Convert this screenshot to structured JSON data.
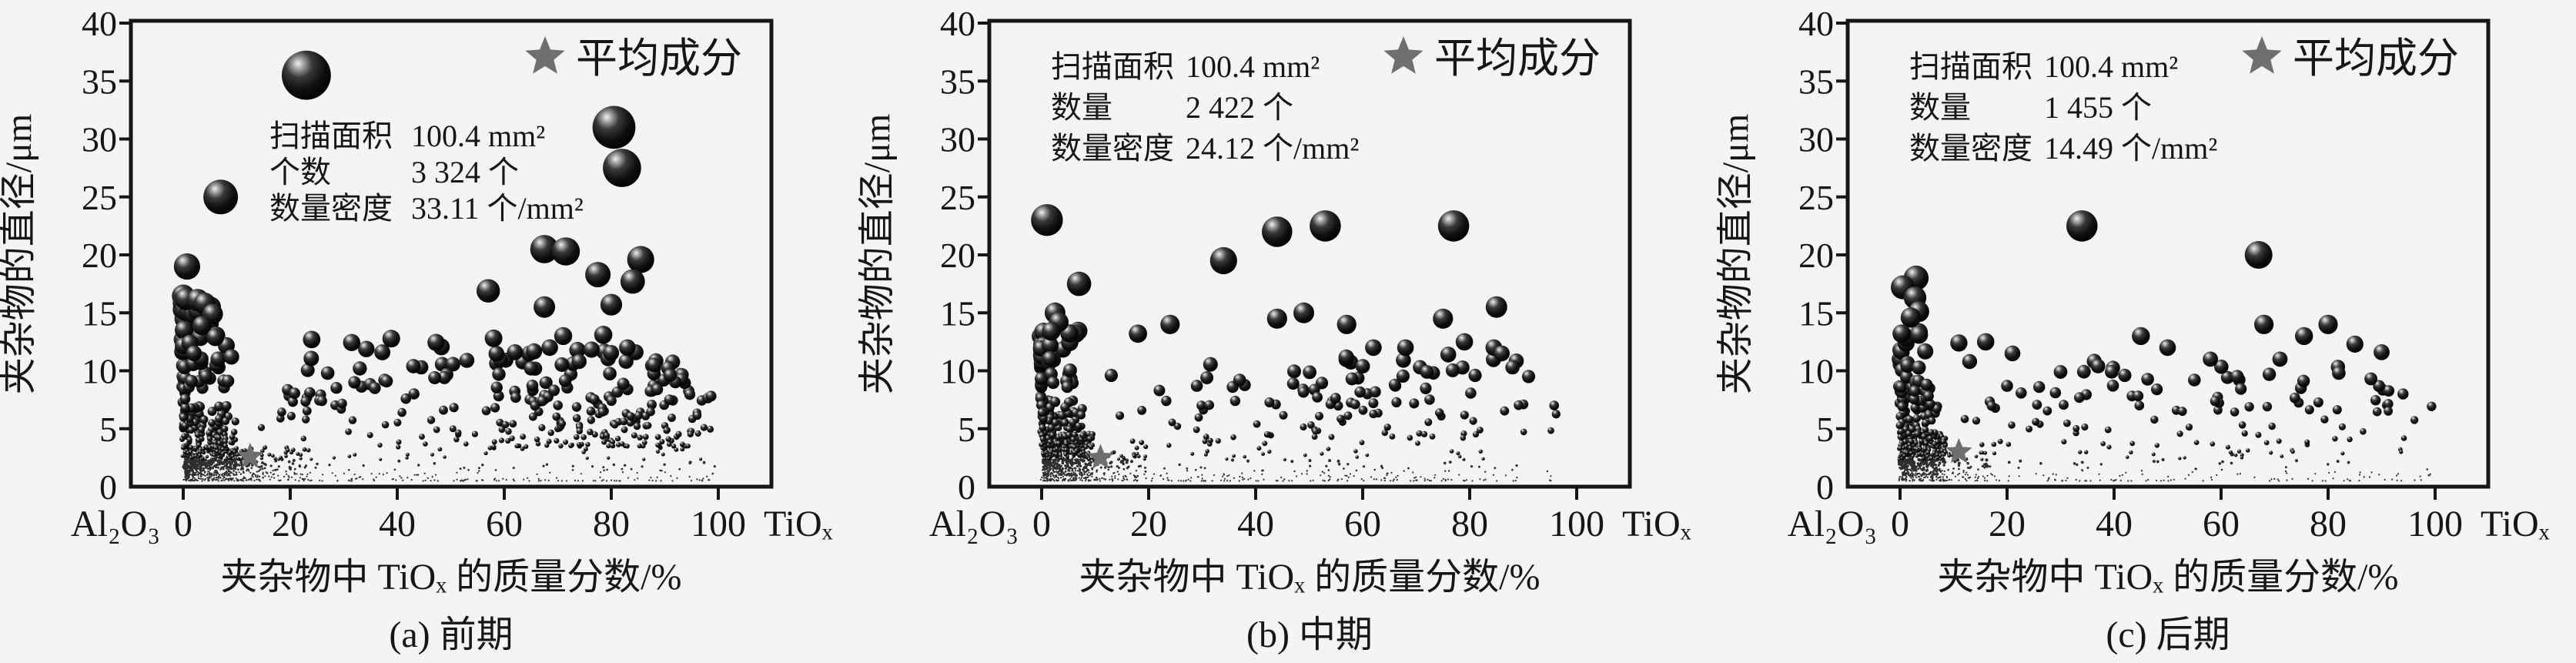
{
  "figure": {
    "background": "#f5f4f2",
    "ink_color": "#161616",
    "point_color": "#0d0d0d",
    "star_color": "#6f6f6f"
  },
  "axes_common": {
    "ylabel": "夹杂物的直径/μm",
    "xlabel": "夹杂物中 TiOₓ 的质量分数/%",
    "x_left_end_label": "Al₂O₃",
    "x_right_end_label": "TiOₓ",
    "yticks": [
      0,
      5,
      10,
      15,
      20,
      25,
      30,
      35,
      40
    ],
    "xticks": [
      0,
      20,
      40,
      60,
      80,
      100
    ],
    "ylim": [
      0,
      40
    ],
    "xlim": [
      0,
      100
    ],
    "grid": false,
    "legend": {
      "marker": "star",
      "label": "平均成分",
      "position": "top-right"
    }
  },
  "chart_data": [
    {
      "type": "scatter",
      "caption": "(a) 前期",
      "marker_rule": "bubble radius proportional to inclusion diameter (y value)",
      "annotation": [
        {
          "label": "扫描面积",
          "value": "100.4 mm²"
        },
        {
          "label": "个数",
          "value": "3 324 个"
        },
        {
          "label": "数量密度",
          "value": "33.11 个/mm²"
        }
      ],
      "annotation_layout": {
        "label_x": 350,
        "value_x": 534,
        "baselines": [
          190,
          237,
          284
        ]
      },
      "average_composition": {
        "x": 12.5,
        "y": 2.6
      },
      "feature_points": [
        [
          23,
          35.5
        ],
        [
          80.5,
          31
        ],
        [
          82,
          27.5
        ],
        [
          7,
          25
        ],
        [
          0.7,
          19
        ],
        [
          67.5,
          20.5
        ],
        [
          71.5,
          20.3
        ],
        [
          85.5,
          19.6
        ],
        [
          77.5,
          18.3
        ],
        [
          84,
          17.7
        ],
        [
          57,
          16.9
        ],
        [
          0.5,
          16.2
        ],
        [
          2.7,
          16.1
        ],
        [
          67.5,
          15.5
        ],
        [
          80,
          15.7
        ],
        [
          4,
          15.8
        ],
        [
          5.5,
          14.9
        ],
        [
          3.5,
          13.9
        ],
        [
          58,
          12.8
        ],
        [
          71,
          13
        ],
        [
          78.5,
          13.1
        ],
        [
          62,
          11.6
        ],
        [
          68.5,
          12
        ],
        [
          83,
          12
        ],
        [
          6,
          12.9
        ],
        [
          9,
          11.2
        ],
        [
          2,
          11.5
        ],
        [
          24,
          12.7
        ],
        [
          33,
          10.2
        ],
        [
          43,
          10.4
        ],
        [
          47,
          9.4
        ],
        [
          27,
          9.8
        ],
        [
          38,
          9.1
        ],
        [
          88,
          10.5
        ],
        [
          91,
          9.6
        ],
        [
          74,
          10.8
        ],
        [
          65,
          10.2
        ],
        [
          59,
          9.7
        ],
        [
          53,
          10.9
        ],
        [
          32,
          9.0
        ]
      ],
      "cloud": {
        "seed": 101,
        "clusters": [
          {
            "n": 480,
            "x": [
              0.3,
              13
            ],
            "xpow": 1.6,
            "y": [
              0.5,
              3.4
            ],
            "ypow": 1.3
          },
          {
            "n": 300,
            "x": [
              0.5,
              10
            ],
            "xpow": 1.5,
            "y": [
              1,
              7
            ],
            "ypow": 2.2
          },
          {
            "n": 55,
            "x": [
              -0.2,
              0.4
            ],
            "xpow": 1.0,
            "y": [
              0.5,
              16.5
            ],
            "ypow": 1.0
          },
          {
            "n": 170,
            "x": [
              8,
              24
            ],
            "xpow": 1.4,
            "y": [
              0.5,
              3.4
            ],
            "ypow": 1.6
          },
          {
            "n": 300,
            "x": [
              14,
              100
            ],
            "xpow": 1.0,
            "y": [
              0.5,
              8.5
            ],
            "ypow": 3.0
          },
          {
            "n": 150,
            "x": [
              58,
              95
            ],
            "xpow": 1.0,
            "y": [
              3.5,
              12
            ],
            "ypow": 1.9
          },
          {
            "n": 26,
            "x": [
              1,
              9
            ],
            "xpow": 1.3,
            "y": [
              8.5,
              15.5
            ],
            "ypow": 1.4
          },
          {
            "n": 18,
            "x": [
              18,
              52
            ],
            "xpow": 1.0,
            "y": [
              8.5,
              13
            ],
            "ypow": 1.5
          }
        ]
      }
    },
    {
      "type": "scatter",
      "caption": "(b) 中期",
      "marker_rule": "bubble radius proportional to inclusion diameter (y value)",
      "annotation": [
        {
          "label": "扫描面积",
          "value": "100.4 mm²"
        },
        {
          "label": "数量",
          "value": "2 422 个"
        },
        {
          "label": "数量密度",
          "value": "24.12 个/mm²"
        }
      ],
      "annotation_layout": {
        "label_x": 250,
        "value_x": 425,
        "baselines": [
          100,
          153,
          206
        ]
      },
      "average_composition": {
        "x": 11,
        "y": 2.5
      },
      "feature_points": [
        [
          1,
          23
        ],
        [
          44,
          22
        ],
        [
          53,
          22.5
        ],
        [
          77,
          22.5
        ],
        [
          34,
          19.5
        ],
        [
          7,
          17.5
        ],
        [
          85,
          15.5
        ],
        [
          49,
          15
        ],
        [
          44,
          14.5
        ],
        [
          75,
          14.5
        ],
        [
          24,
          14
        ],
        [
          57,
          14
        ],
        [
          2.5,
          15
        ],
        [
          3.2,
          14.2
        ],
        [
          1.8,
          13.4
        ],
        [
          79,
          12.5
        ],
        [
          62,
          12
        ],
        [
          68,
          12
        ],
        [
          84.5,
          12
        ],
        [
          86,
          11.5
        ],
        [
          76,
          11.4
        ],
        [
          18,
          13.2
        ],
        [
          29,
          8.7
        ],
        [
          37,
          9.2
        ],
        [
          47,
          8.9
        ],
        [
          58,
          9.3
        ],
        [
          66,
          8.8
        ],
        [
          72,
          9.9
        ],
        [
          81,
          9.6
        ],
        [
          88,
          10.3
        ],
        [
          91,
          9.5
        ],
        [
          22,
          8.3
        ],
        [
          13,
          9.6
        ]
      ],
      "cloud": {
        "seed": 202,
        "clusters": [
          {
            "n": 430,
            "x": [
              0.3,
              9.5
            ],
            "xpow": 1.5,
            "y": [
              0.5,
              4.6
            ],
            "ypow": 1.4
          },
          {
            "n": 240,
            "x": [
              0.5,
              8
            ],
            "xpow": 1.4,
            "y": [
              1,
              7.5
            ],
            "ypow": 2.2
          },
          {
            "n": 48,
            "x": [
              -0.2,
              0.4
            ],
            "xpow": 1.0,
            "y": [
              0.5,
              13.5
            ],
            "ypow": 1.0
          },
          {
            "n": 130,
            "x": [
              7,
              20
            ],
            "xpow": 1.4,
            "y": [
              0.5,
              3
            ],
            "ypow": 1.5
          },
          {
            "n": 290,
            "x": [
              13,
              97
            ],
            "xpow": 1.0,
            "y": [
              0.5,
              7.5
            ],
            "ypow": 2.8
          },
          {
            "n": 40,
            "x": [
              25,
              92
            ],
            "xpow": 1.0,
            "y": [
              7,
              11.2
            ],
            "ypow": 1.4
          },
          {
            "n": 18,
            "x": [
              1,
              7
            ],
            "xpow": 1.3,
            "y": [
              8.5,
              13.5
            ],
            "ypow": 1.3
          }
        ]
      }
    },
    {
      "type": "scatter",
      "caption": "(c) 后期",
      "marker_rule": "bubble radius proportional to inclusion diameter (y value)",
      "annotation": [
        {
          "label": "扫描面积",
          "value": "100.4 mm²"
        },
        {
          "label": "数量",
          "value": "1 455 个"
        },
        {
          "label": "数量密度",
          "value": "14.49 个/mm²"
        }
      ],
      "annotation_layout": {
        "label_x": 250,
        "value_x": 425,
        "baselines": [
          100,
          153,
          206
        ]
      },
      "average_composition": {
        "x": 11,
        "y": 3
      },
      "feature_points": [
        [
          34,
          22.5
        ],
        [
          67,
          20
        ],
        [
          3,
          18
        ],
        [
          0.5,
          17.2
        ],
        [
          2.8,
          16.3
        ],
        [
          3.5,
          15.1
        ],
        [
          2,
          14.6
        ],
        [
          68,
          14
        ],
        [
          80,
          14
        ],
        [
          45,
          13
        ],
        [
          75.5,
          13
        ],
        [
          16,
          12.5
        ],
        [
          50,
          12
        ],
        [
          21,
          11.5
        ],
        [
          58,
          11
        ],
        [
          71,
          11
        ],
        [
          85,
          12.3
        ],
        [
          90,
          11.6
        ],
        [
          11,
          12.4
        ],
        [
          30,
          9.9
        ],
        [
          37,
          10.4
        ],
        [
          42,
          9.6
        ],
        [
          55,
          9.2
        ],
        [
          63,
          9.5
        ],
        [
          82,
          9.8
        ],
        [
          88,
          9.3
        ],
        [
          26,
          8.6
        ],
        [
          48,
          8.4
        ],
        [
          94,
          8
        ],
        [
          13,
          10.8
        ],
        [
          20,
          8.7
        ],
        [
          0.3,
          13.2
        ]
      ],
      "cloud": {
        "seed": 303,
        "clusters": [
          {
            "n": 380,
            "x": [
              0.3,
              8.5
            ],
            "xpow": 1.5,
            "y": [
              0.5,
              4.6
            ],
            "ypow": 1.4
          },
          {
            "n": 210,
            "x": [
              0.4,
              7
            ],
            "xpow": 1.4,
            "y": [
              1,
              7.8
            ],
            "ypow": 2.2
          },
          {
            "n": 44,
            "x": [
              -0.2,
              0.4
            ],
            "xpow": 1.0,
            "y": [
              0.5,
              12
            ],
            "ypow": 1.0
          },
          {
            "n": 110,
            "x": [
              6,
              18
            ],
            "xpow": 1.4,
            "y": [
              0.5,
              3
            ],
            "ypow": 1.5
          },
          {
            "n": 210,
            "x": [
              12,
              100
            ],
            "xpow": 1.0,
            "y": [
              0.5,
              7.5
            ],
            "ypow": 2.8
          },
          {
            "n": 34,
            "x": [
              22,
              95
            ],
            "xpow": 1.0,
            "y": [
              6.5,
              11
            ],
            "ypow": 1.4
          },
          {
            "n": 26,
            "x": [
              1,
              6
            ],
            "xpow": 1.3,
            "y": [
              7,
              14
            ],
            "ypow": 1.3
          }
        ]
      }
    }
  ]
}
